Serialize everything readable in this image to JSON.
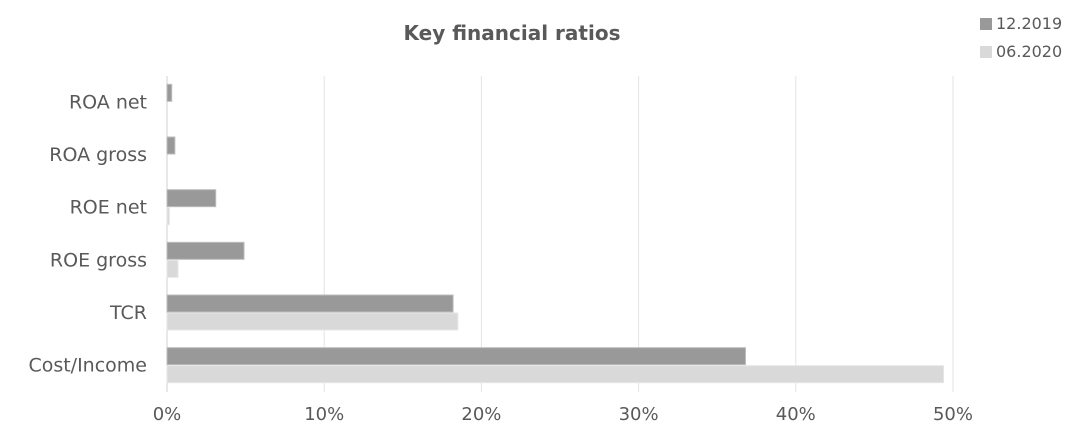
{
  "chart_data": {
    "type": "bar",
    "orientation": "horizontal",
    "title": "Key financial ratios",
    "categories": [
      "ROA net",
      "ROA gross",
      "ROE net",
      "ROE gross",
      "TCR",
      "Cost/Income"
    ],
    "series": [
      {
        "name": "12.2019",
        "color": "#999999",
        "values": [
          0.3,
          0.5,
          3.1,
          4.9,
          18.2,
          36.8
        ]
      },
      {
        "name": "06.2020",
        "color": "#d9d9d9",
        "values": [
          0.0,
          0.0,
          0.15,
          0.7,
          18.5,
          49.4
        ]
      }
    ],
    "x_ticks": [
      "0%",
      "10%",
      "20%",
      "30%",
      "40%",
      "50%"
    ],
    "xlim": [
      0,
      50
    ],
    "grid": true,
    "legend_position": "top-right"
  }
}
